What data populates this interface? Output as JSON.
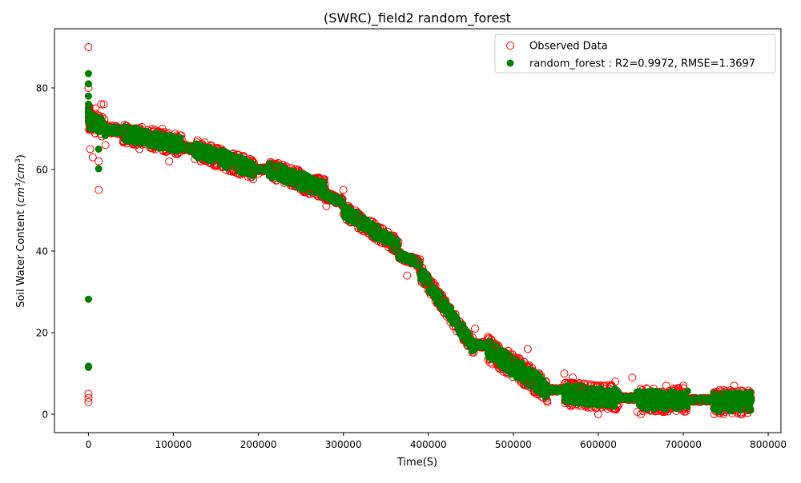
{
  "chart_data": {
    "type": "scatter",
    "title": "(SWRC)_field2 random_forest",
    "xlabel": "Time(S)",
    "ylabel_main": "Soil Water Content (",
    "ylabel_unit": "cm",
    "ylabel_sup": "3",
    "ylabel_slash": "/",
    "ylabel_unit2": "cm",
    "ylabel_sup2": "3",
    "ylabel_close": ")",
    "xlim": [
      -40000,
      815000
    ],
    "ylim": [
      -4.5,
      94.5
    ],
    "x_ticks": [
      0,
      100000,
      200000,
      300000,
      400000,
      500000,
      600000,
      700000,
      800000
    ],
    "y_ticks": [
      0,
      20,
      40,
      60,
      80
    ],
    "grid": false,
    "legend_position": "top-right",
    "series": [
      {
        "name": "Observed Data",
        "marker": "hollow-circle",
        "color": "#ff0000",
        "points": [
          [
            0,
            90
          ],
          [
            0,
            80
          ],
          [
            0,
            5
          ],
          [
            0,
            4
          ],
          [
            0,
            3
          ],
          [
            2000,
            65
          ],
          [
            2000,
            70
          ],
          [
            5000,
            63
          ],
          [
            8000,
            75
          ],
          [
            12000,
            62
          ],
          [
            12000,
            55
          ],
          [
            15000,
            76
          ],
          [
            18000,
            76
          ],
          [
            20000,
            66
          ],
          [
            40000,
            70
          ],
          [
            60000,
            65
          ],
          [
            87000,
            70
          ],
          [
            95000,
            62
          ],
          [
            120000,
            65
          ],
          [
            150000,
            61
          ],
          [
            170000,
            60
          ],
          [
            200000,
            59
          ],
          [
            220000,
            61
          ],
          [
            240000,
            56
          ],
          [
            260000,
            54
          ],
          [
            280000,
            51
          ],
          [
            300000,
            55
          ],
          [
            320000,
            48
          ],
          [
            340000,
            46
          ],
          [
            360000,
            40
          ],
          [
            375000,
            34
          ],
          [
            390000,
            38
          ],
          [
            400000,
            32
          ],
          [
            420000,
            28
          ],
          [
            440000,
            22
          ],
          [
            455000,
            21
          ],
          [
            470000,
            19
          ],
          [
            480000,
            17
          ],
          [
            500000,
            14
          ],
          [
            517000,
            16
          ],
          [
            520000,
            8
          ],
          [
            540000,
            3
          ],
          [
            560000,
            10
          ],
          [
            570000,
            9
          ],
          [
            580000,
            6
          ],
          [
            600000,
            0
          ],
          [
            620000,
            8
          ],
          [
            640000,
            9
          ],
          [
            650000,
            0
          ],
          [
            680000,
            7
          ],
          [
            700000,
            7
          ],
          [
            720000,
            3
          ],
          [
            740000,
            5
          ],
          [
            760000,
            7
          ],
          [
            775000,
            1
          ]
        ]
      },
      {
        "name": "random_forest : R2=0.9972, RMSE=1.3697",
        "marker": "filled-circle",
        "color": "#008000",
        "points": [
          [
            0,
            83.5
          ],
          [
            0,
            81
          ],
          [
            0,
            78
          ],
          [
            0,
            76
          ],
          [
            0,
            74
          ],
          [
            0,
            72
          ],
          [
            0,
            28.2
          ],
          [
            0,
            11.8
          ],
          [
            0,
            11.5
          ],
          [
            5000,
            70
          ],
          [
            10000,
            72
          ],
          [
            12000,
            65
          ],
          [
            12000,
            60.2
          ],
          [
            20000,
            70
          ],
          [
            40000,
            70
          ],
          [
            60000,
            67
          ],
          [
            80000,
            66
          ],
          [
            100000,
            66
          ],
          [
            120000,
            65
          ],
          [
            140000,
            64
          ],
          [
            160000,
            62
          ],
          [
            180000,
            61
          ],
          [
            200000,
            60
          ],
          [
            220000,
            59
          ],
          [
            240000,
            57
          ],
          [
            260000,
            56
          ],
          [
            280000,
            54
          ],
          [
            300000,
            51
          ],
          [
            320000,
            48
          ],
          [
            340000,
            46
          ],
          [
            360000,
            42
          ],
          [
            380000,
            38
          ],
          [
            400000,
            33
          ],
          [
            420000,
            27
          ],
          [
            440000,
            22
          ],
          [
            460000,
            17
          ],
          [
            480000,
            14
          ],
          [
            500000,
            12
          ],
          [
            520000,
            9
          ],
          [
            540000,
            6
          ],
          [
            560000,
            5
          ],
          [
            580000,
            5
          ],
          [
            600000,
            4
          ],
          [
            620000,
            4
          ],
          [
            640000,
            4
          ],
          [
            660000,
            4
          ],
          [
            680000,
            4
          ],
          [
            700000,
            4
          ],
          [
            720000,
            4
          ],
          [
            740000,
            4
          ],
          [
            760000,
            4
          ],
          [
            778000,
            2
          ]
        ]
      }
    ],
    "segments": [
      {
        "x0": 0,
        "x1": 2000,
        "y0": 73,
        "y1": 72,
        "yspread": 6
      },
      {
        "x0": 2000,
        "x1": 20000,
        "y0": 72,
        "y1": 70,
        "yspread": 5
      },
      {
        "x0": 20000,
        "x1": 40000,
        "y0": 70,
        "y1": 69.5,
        "yspread": 2
      },
      {
        "x0": 40000,
        "x1": 110000,
        "y0": 69,
        "y1": 66,
        "yspread": 5
      },
      {
        "x0": 110000,
        "x1": 125000,
        "y0": 65.5,
        "y1": 65,
        "yspread": 1.5
      },
      {
        "x0": 125000,
        "x1": 195000,
        "y0": 65,
        "y1": 60,
        "yspread": 5
      },
      {
        "x0": 195000,
        "x1": 212000,
        "y0": 60,
        "y1": 60,
        "yspread": 1
      },
      {
        "x0": 212000,
        "x1": 280000,
        "y0": 60,
        "y1": 55,
        "yspread": 5
      },
      {
        "x0": 280000,
        "x1": 300000,
        "y0": 53.5,
        "y1": 52,
        "yspread": 2
      },
      {
        "x0": 300000,
        "x1": 365000,
        "y0": 50,
        "y1": 41,
        "yspread": 4
      },
      {
        "x0": 365000,
        "x1": 390000,
        "y0": 39,
        "y1": 37,
        "yspread": 2
      },
      {
        "x0": 390000,
        "x1": 455000,
        "y0": 35,
        "y1": 16,
        "yspread": 4
      },
      {
        "x0": 455000,
        "x1": 470000,
        "y0": 17,
        "y1": 17,
        "yspread": 1.5
      },
      {
        "x0": 470000,
        "x1": 540000,
        "y0": 16,
        "y1": 6,
        "yspread": 6
      },
      {
        "x0": 540000,
        "x1": 560000,
        "y0": 6,
        "y1": 6,
        "yspread": 1
      },
      {
        "x0": 560000,
        "x1": 625000,
        "y0": 5,
        "y1": 4,
        "yspread": 6
      },
      {
        "x0": 625000,
        "x1": 645000,
        "y0": 4,
        "y1": 4,
        "yspread": 1
      },
      {
        "x0": 645000,
        "x1": 705000,
        "y0": 3.5,
        "y1": 3.5,
        "yspread": 6
      },
      {
        "x0": 705000,
        "x1": 735000,
        "y0": 3.5,
        "y1": 3.5,
        "yspread": 1
      },
      {
        "x0": 735000,
        "x1": 780000,
        "y0": 3,
        "y1": 3,
        "yspread": 6
      }
    ]
  }
}
